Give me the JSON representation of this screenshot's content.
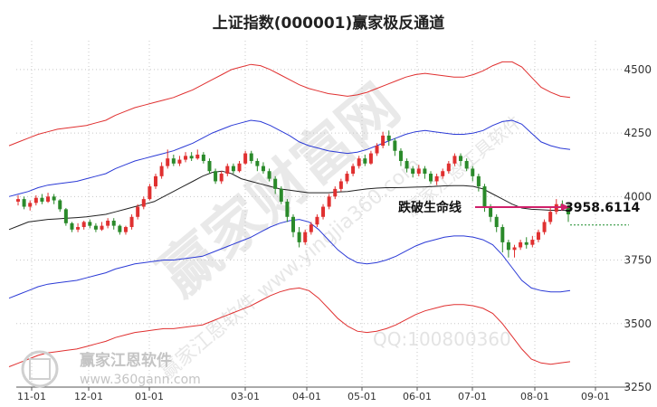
{
  "chart_data": {
    "type": "candlestick",
    "title": "上证指数(000001)赢家极反通道",
    "ylim": [
      3250,
      4560
    ],
    "yticks": [
      3250,
      3500,
      3750,
      4000,
      4250,
      4500
    ],
    "yticks_text": [
      "3250",
      "3500",
      "3750",
      "4000",
      "4250",
      "4500"
    ],
    "x_tick_labels": [
      "11-01",
      "12-01",
      "01-01",
      "03-01",
      "04-01",
      "05-01",
      "06-01",
      "07-01",
      "08-01",
      "09-01"
    ],
    "grid": true,
    "series": [
      {
        "type": "line",
        "color": "#e03030",
        "values": [
          3330,
          3345,
          3360,
          3375,
          3385,
          3390,
          3395,
          3400,
          3410,
          3420,
          3430,
          3445,
          3455,
          3465,
          3470,
          3475,
          3480,
          3480,
          3485,
          3490,
          3495,
          3510,
          3525,
          3540,
          3555,
          3570,
          3590,
          3610,
          3625,
          3635,
          3640,
          3630,
          3600,
          3560,
          3520,
          3490,
          3470,
          3465,
          3470,
          3480,
          3495,
          3515,
          3535,
          3550,
          3560,
          3570,
          3575,
          3575,
          3570,
          3560,
          3540,
          3500,
          3450,
          3400,
          3360,
          3345,
          3340,
          3345,
          3350
        ]
      },
      {
        "type": "line",
        "color": "#2b3ad6",
        "values": [
          3600,
          3615,
          3630,
          3645,
          3655,
          3660,
          3665,
          3670,
          3680,
          3690,
          3700,
          3715,
          3725,
          3735,
          3740,
          3745,
          3750,
          3750,
          3755,
          3760,
          3765,
          3780,
          3795,
          3810,
          3825,
          3840,
          3860,
          3880,
          3895,
          3905,
          3910,
          3900,
          3870,
          3830,
          3790,
          3760,
          3740,
          3735,
          3740,
          3750,
          3765,
          3785,
          3805,
          3820,
          3830,
          3840,
          3845,
          3845,
          3840,
          3830,
          3810,
          3770,
          3720,
          3670,
          3640,
          3630,
          3625,
          3625,
          3630
        ]
      },
      {
        "type": "line",
        "color": "#2b3ad6",
        "values": [
          4000,
          4010,
          4020,
          4035,
          4045,
          4050,
          4055,
          4060,
          4070,
          4080,
          4090,
          4110,
          4125,
          4140,
          4150,
          4160,
          4170,
          4180,
          4195,
          4210,
          4230,
          4250,
          4265,
          4280,
          4290,
          4300,
          4295,
          4280,
          4260,
          4240,
          4215,
          4200,
          4190,
          4180,
          4175,
          4170,
          4175,
          4185,
          4200,
          4215,
          4230,
          4245,
          4255,
          4260,
          4255,
          4250,
          4245,
          4245,
          4250,
          4260,
          4280,
          4295,
          4300,
          4285,
          4250,
          4215,
          4200,
          4190,
          4185
        ]
      },
      {
        "type": "line",
        "color": "#e03030",
        "values": [
          4200,
          4215,
          4230,
          4245,
          4255,
          4265,
          4270,
          4275,
          4280,
          4290,
          4300,
          4320,
          4335,
          4350,
          4360,
          4370,
          4380,
          4390,
          4405,
          4420,
          4440,
          4460,
          4480,
          4500,
          4510,
          4520,
          4515,
          4500,
          4480,
          4460,
          4440,
          4425,
          4415,
          4405,
          4400,
          4395,
          4400,
          4410,
          4425,
          4440,
          4455,
          4470,
          4480,
          4485,
          4480,
          4475,
          4470,
          4470,
          4480,
          4495,
          4515,
          4530,
          4530,
          4510,
          4470,
          4430,
          4410,
          4395,
          4390
        ]
      },
      {
        "type": "line",
        "color": "#222222",
        "values": [
          3870,
          3885,
          3900,
          3905,
          3910,
          3912,
          3915,
          3917,
          3920,
          3925,
          3930,
          3940,
          3950,
          3960,
          3970,
          3980,
          4000,
          4020,
          4040,
          4060,
          4080,
          4095,
          4100,
          4090,
          4070,
          4060,
          4050,
          4040,
          4030,
          4025,
          4020,
          4015,
          4015,
          4015,
          4018,
          4020,
          4025,
          4030,
          4033,
          4035,
          4035,
          4036,
          4037,
          4038,
          4040,
          4042,
          4043,
          4043,
          4040,
          4030,
          4010,
          3990,
          3970,
          3955,
          3950,
          3948,
          3946,
          3946,
          3945
        ]
      }
    ],
    "candles": [
      [
        3980,
        3990,
        4005,
        3965
      ],
      [
        3990,
        3960,
        4000,
        3950
      ],
      [
        3960,
        3975,
        3985,
        3945
      ],
      [
        3975,
        3995,
        4005,
        3965
      ],
      [
        3995,
        3980,
        4010,
        3970
      ],
      [
        3980,
        4000,
        4015,
        3975
      ],
      [
        4000,
        3985,
        4010,
        3970
      ],
      [
        3985,
        3950,
        3990,
        3940
      ],
      [
        3950,
        3895,
        3955,
        3885
      ],
      [
        3895,
        3870,
        3900,
        3860
      ],
      [
        3870,
        3880,
        3895,
        3860
      ],
      [
        3880,
        3900,
        3905,
        3870
      ],
      [
        3900,
        3885,
        3910,
        3875
      ],
      [
        3885,
        3870,
        3895,
        3860
      ],
      [
        3870,
        3885,
        3900,
        3865
      ],
      [
        3885,
        3905,
        3915,
        3875
      ],
      [
        3905,
        3885,
        3915,
        3870
      ],
      [
        3885,
        3860,
        3890,
        3850
      ],
      [
        3860,
        3880,
        3885,
        3850
      ],
      [
        3880,
        3920,
        3930,
        3870
      ],
      [
        3920,
        3960,
        3970,
        3910
      ],
      [
        3960,
        3990,
        4000,
        3950
      ],
      [
        3990,
        4040,
        4050,
        3985
      ],
      [
        4040,
        4080,
        4090,
        4030
      ],
      [
        4080,
        4120,
        4135,
        4070
      ],
      [
        4120,
        4150,
        4185,
        4110
      ],
      [
        4150,
        4130,
        4165,
        4120
      ],
      [
        4130,
        4145,
        4160,
        4120
      ],
      [
        4145,
        4160,
        4175,
        4135
      ],
      [
        4160,
        4150,
        4175,
        4140
      ],
      [
        4150,
        4165,
        4185,
        4145
      ],
      [
        4165,
        4140,
        4175,
        4130
      ],
      [
        4140,
        4100,
        4150,
        4090
      ],
      [
        4100,
        4060,
        4110,
        4050
      ],
      [
        4060,
        4090,
        4100,
        4050
      ],
      [
        4090,
        4120,
        4130,
        4080
      ],
      [
        4120,
        4100,
        4130,
        4090
      ],
      [
        4100,
        4130,
        4140,
        4095
      ],
      [
        4130,
        4170,
        4180,
        4125
      ],
      [
        4170,
        4140,
        4180,
        4130
      ],
      [
        4140,
        4120,
        4150,
        4100
      ],
      [
        4120,
        4100,
        4135,
        4090
      ],
      [
        4100,
        4070,
        4110,
        4060
      ],
      [
        4070,
        4030,
        4080,
        4010
      ],
      [
        4030,
        3980,
        4040,
        3970
      ],
      [
        3980,
        3920,
        3990,
        3900
      ],
      [
        3920,
        3860,
        3930,
        3840
      ],
      [
        3860,
        3820,
        3880,
        3800
      ],
      [
        3820,
        3860,
        3870,
        3810
      ],
      [
        3860,
        3890,
        3900,
        3850
      ],
      [
        3890,
        3920,
        3930,
        3880
      ],
      [
        3920,
        3960,
        3970,
        3910
      ],
      [
        3960,
        4000,
        4010,
        3950
      ],
      [
        4000,
        4030,
        4040,
        3990
      ],
      [
        4030,
        4060,
        4070,
        4020
      ],
      [
        4060,
        4090,
        4100,
        4050
      ],
      [
        4090,
        4120,
        4130,
        4080
      ],
      [
        4120,
        4150,
        4160,
        4110
      ],
      [
        4150,
        4130,
        4165,
        4120
      ],
      [
        4130,
        4170,
        4180,
        4125
      ],
      [
        4170,
        4200,
        4210,
        4160
      ],
      [
        4200,
        4240,
        4255,
        4190
      ],
      [
        4240,
        4220,
        4260,
        4200
      ],
      [
        4220,
        4180,
        4230,
        4160
      ],
      [
        4180,
        4140,
        4190,
        4120
      ],
      [
        4140,
        4110,
        4150,
        4095
      ],
      [
        4110,
        4090,
        4120,
        4075
      ],
      [
        4090,
        4110,
        4125,
        4080
      ],
      [
        4110,
        4090,
        4120,
        4070
      ],
      [
        4090,
        4060,
        4100,
        4050
      ],
      [
        4060,
        4080,
        4090,
        4045
      ],
      [
        4080,
        4100,
        4110,
        4070
      ],
      [
        4100,
        4130,
        4140,
        4090
      ],
      [
        4130,
        4160,
        4170,
        4120
      ],
      [
        4160,
        4140,
        4170,
        4120
      ],
      [
        4140,
        4110,
        4150,
        4100
      ],
      [
        4110,
        4080,
        4120,
        4060
      ],
      [
        4080,
        4040,
        4090,
        4020
      ],
      [
        4040,
        3960,
        4050,
        3940
      ],
      [
        3960,
        3920,
        3970,
        3900
      ],
      [
        3920,
        3880,
        3930,
        3860
      ],
      [
        3880,
        3820,
        3890,
        3780
      ],
      [
        3820,
        3790,
        3830,
        3760
      ],
      [
        3790,
        3800,
        3810,
        3760
      ],
      [
        3800,
        3820,
        3830,
        3790
      ],
      [
        3820,
        3810,
        3840,
        3795
      ],
      [
        3810,
        3830,
        3845,
        3800
      ],
      [
        3830,
        3860,
        3870,
        3820
      ],
      [
        3860,
        3900,
        3910,
        3850
      ],
      [
        3900,
        3940,
        3960,
        3890
      ],
      [
        3940,
        3970,
        3990,
        3930
      ],
      [
        3970,
        3958,
        3985,
        3950
      ],
      [
        3958,
        3930,
        3970,
        3900
      ]
    ],
    "annotation": {
      "label": "跌破生命线",
      "value_text": "3958.6114",
      "value": 3958.6114
    }
  },
  "watermark": {
    "big": "赢家财富网",
    "mid": "赢家江恩软件 www.yingjia360.com",
    "right": "赢家江恩工具软件",
    "qq": "QQ:100800360",
    "brand_name": "赢家江恩软件",
    "brand_url": "www.360gann.com"
  },
  "colors": {
    "up": "#e03030",
    "down": "#2a8a2a",
    "outer_band": "#e03030",
    "inner_band": "#2b3ad6",
    "midline": "#222222",
    "breakline": "#d0206a",
    "lastprice": "#1a8c2a"
  }
}
